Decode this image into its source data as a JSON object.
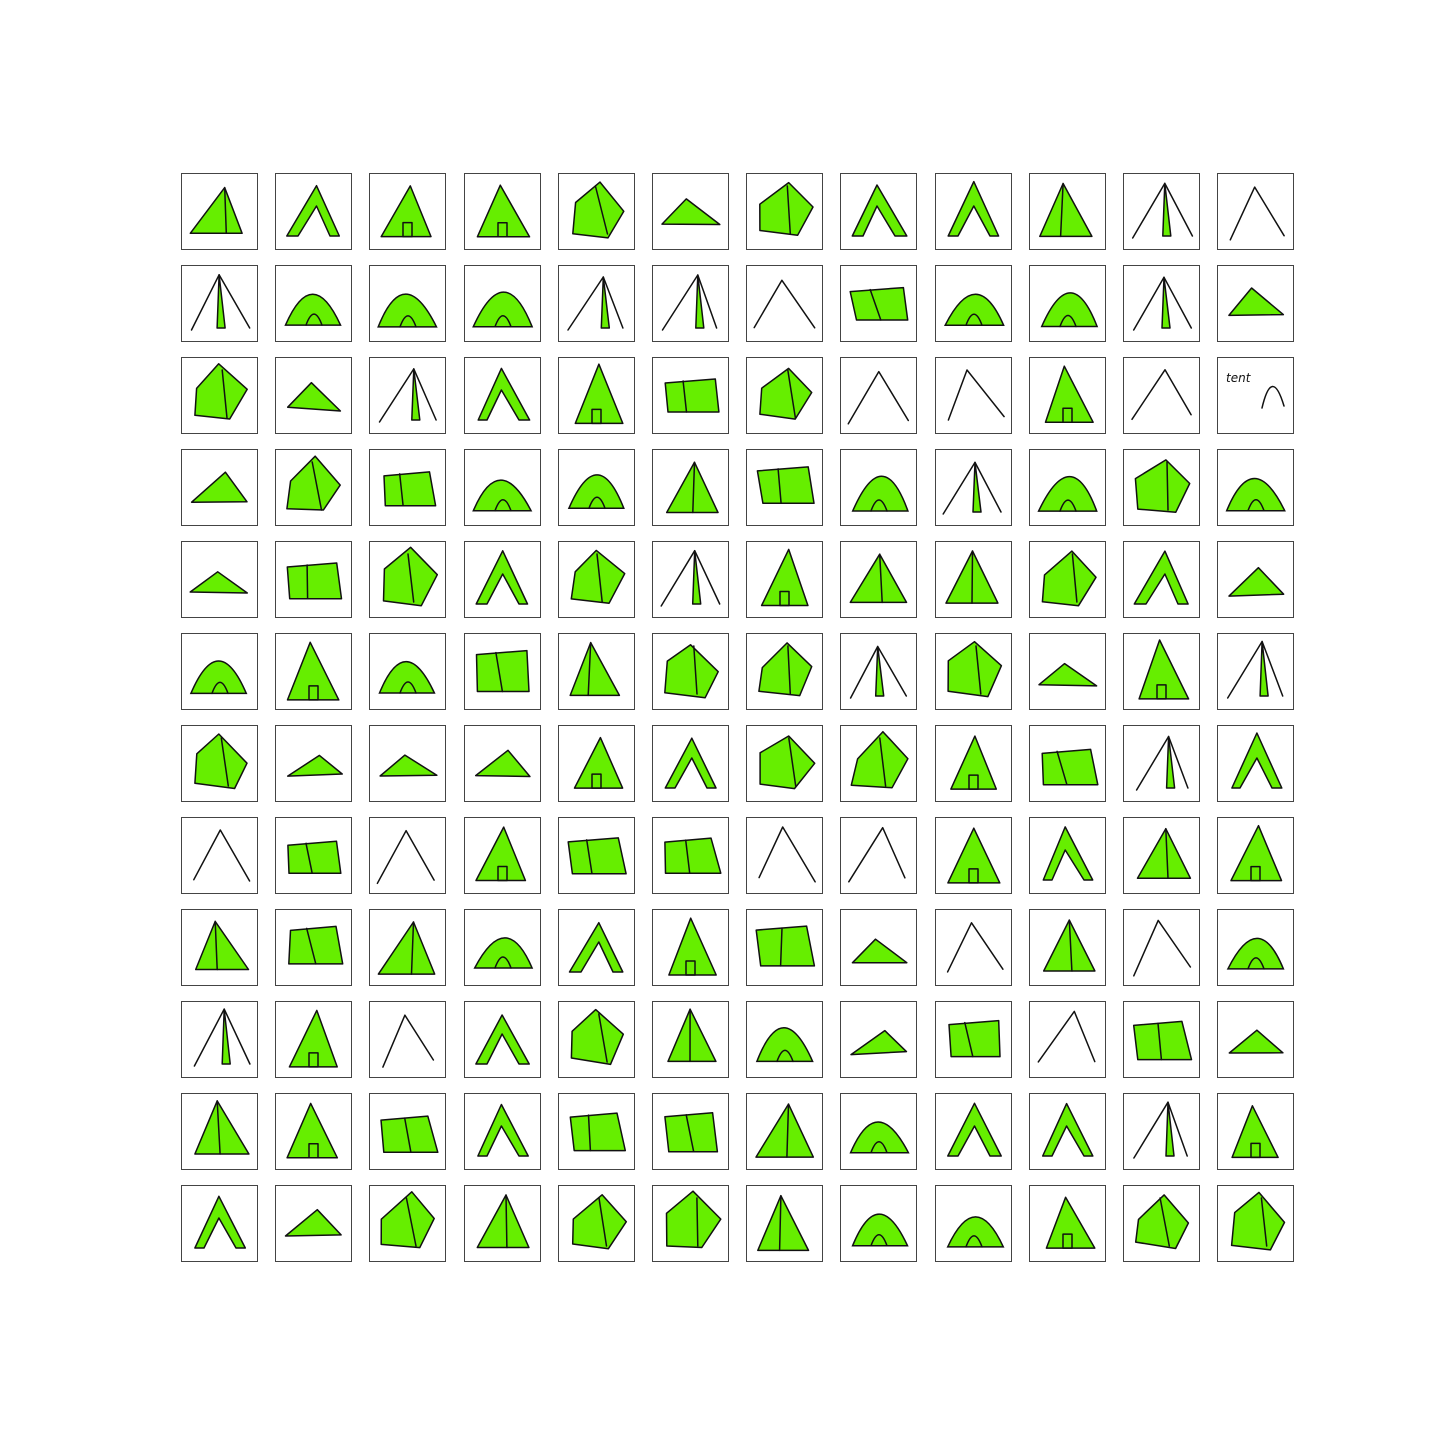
{
  "grid": {
    "rows": 12,
    "columns": 12
  },
  "colors": {
    "fill": "#66ee00",
    "stroke": "#111111",
    "frame": "#444444",
    "background": "#ffffff"
  },
  "annotations": {
    "scribble_text": "tent"
  },
  "subject": "tent-sketch"
}
